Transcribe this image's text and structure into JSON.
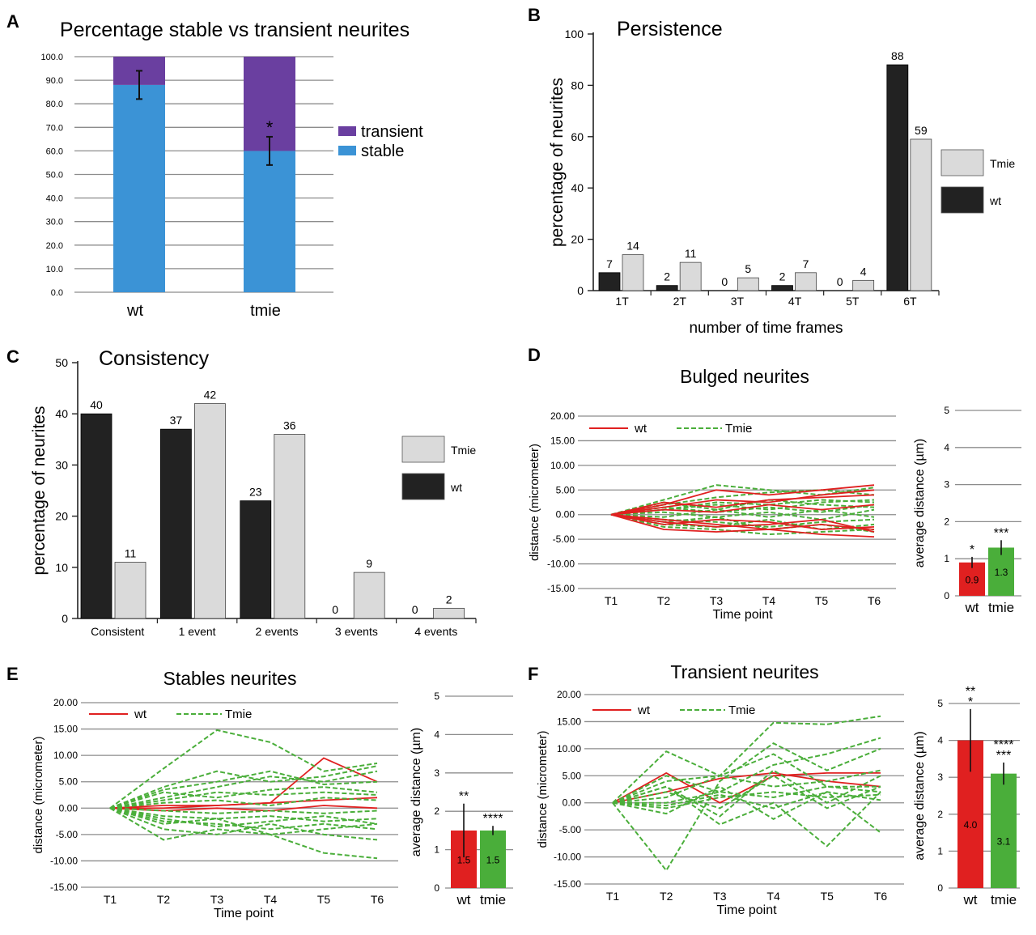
{
  "colors": {
    "stable": "#3b93d6",
    "transient": "#6a3fa0",
    "wt_bar": "#222222",
    "tmie_bar": "#dadada",
    "wt_red": "#e02020",
    "tmie_green": "#4aae3a",
    "grid": "#8c8c8c"
  },
  "panels": {
    "A": {
      "letter": "A",
      "title": "Percentage stable vs transient neurites"
    },
    "B": {
      "letter": "B",
      "title": "Persistence"
    },
    "C": {
      "letter": "C",
      "title": "Consistency"
    },
    "D": {
      "letter": "D",
      "title": "Bulged neurites"
    },
    "E": {
      "letter": "E",
      "title": "Stables neurites"
    },
    "F": {
      "letter": "F",
      "title": "Transient neurites"
    }
  },
  "chart_data": [
    {
      "id": "A",
      "type": "bar",
      "stacked": true,
      "title": "Percentage stable vs transient neurites",
      "categories": [
        "wt",
        "tmie"
      ],
      "series": [
        {
          "name": "stable",
          "values": [
            88,
            60
          ],
          "error": [
            6,
            6
          ]
        },
        {
          "name": "transient",
          "values": [
            12,
            40
          ]
        }
      ],
      "ylim": [
        0,
        100
      ],
      "yticks": [
        "0.0",
        "10.0",
        "20.0",
        "30.0",
        "40.0",
        "50.0",
        "60.0",
        "70.0",
        "80.0",
        "90.0",
        "100.0"
      ],
      "annotations": [
        {
          "category": "tmie",
          "text": "*"
        }
      ],
      "legend": [
        "transient",
        "stable"
      ],
      "legend_position": "right",
      "grid": true
    },
    {
      "id": "B",
      "type": "bar",
      "title": "Persistence",
      "xlabel": "number of time frames",
      "ylabel": "percentage of neurites",
      "categories": [
        "1T",
        "2T",
        "3T",
        "4T",
        "5T",
        "6T"
      ],
      "series": [
        {
          "name": "wt",
          "values": [
            7,
            2,
            0,
            2,
            0,
            88
          ]
        },
        {
          "name": "Tmie",
          "values": [
            14,
            11,
            5,
            7,
            4,
            59
          ]
        }
      ],
      "ylim": [
        0,
        100
      ],
      "yticks": [
        "0",
        "20",
        "40",
        "60",
        "80",
        "100"
      ],
      "legend": [
        "Tmie",
        "wt"
      ],
      "legend_position": "right",
      "grid": false
    },
    {
      "id": "C",
      "type": "bar",
      "title": "Consistency",
      "ylabel": "percentage of neurites",
      "categories": [
        "Consistent",
        "1 event",
        "2 events",
        "3 events",
        "4 events"
      ],
      "series": [
        {
          "name": "wt",
          "values": [
            40,
            37,
            23,
            0,
            0
          ]
        },
        {
          "name": "Tmie",
          "values": [
            11,
            42,
            36,
            9,
            2
          ]
        }
      ],
      "ylim": [
        0,
        50
      ],
      "yticks": [
        "0",
        "10",
        "20",
        "30",
        "40",
        "50"
      ],
      "legend": [
        "Tmie",
        "wt"
      ],
      "legend_position": "right",
      "grid": false
    },
    {
      "id": "D",
      "type": "line",
      "title": "Bulged neurites",
      "xlabel": "Time point",
      "ylabel": "distance (micrometer)",
      "x": [
        "T1",
        "T2",
        "T3",
        "T4",
        "T5",
        "T6"
      ],
      "ylim": [
        -15,
        20
      ],
      "yticks": [
        "-15.00",
        "-10.00",
        "-5.00",
        "0.00",
        "5.00",
        "10.00",
        "15.00",
        "20.00"
      ],
      "legend": [
        "wt",
        "Tmie"
      ],
      "series": [
        {
          "name": "wt",
          "lines": [
            [
              0,
              2,
              5,
              4,
              5,
              6
            ],
            [
              0,
              -3,
              -3.5,
              -3,
              -4,
              -4.5
            ],
            [
              0,
              1.5,
              3,
              2.5,
              4,
              5
            ],
            [
              0,
              -1,
              -2,
              -3,
              -2,
              -3
            ],
            [
              0,
              2.5,
              1.5,
              3,
              3.5,
              4
            ],
            [
              0,
              -2,
              -1,
              -1.5,
              -3,
              -2.5
            ],
            [
              0,
              1,
              0.5,
              2,
              1,
              2
            ],
            [
              0,
              -1.5,
              -2.5,
              -2,
              -1,
              -3.5
            ]
          ]
        },
        {
          "name": "Tmie",
          "lines": [
            [
              0,
              3,
              6,
              5,
              4,
              5.5
            ],
            [
              0,
              -2.5,
              -3,
              -4,
              -3.5,
              -3
            ],
            [
              0,
              2,
              3.5,
              4.5,
              5,
              4
            ],
            [
              0,
              -2,
              -2.5,
              -1,
              -3,
              -2
            ],
            [
              0,
              1,
              2,
              1,
              2.5,
              3
            ],
            [
              0,
              -1,
              -1.5,
              -2.5,
              -1.5,
              -1
            ],
            [
              0,
              1.5,
              0.5,
              1.5,
              0.5,
              2
            ],
            [
              0,
              -0.5,
              1,
              -0.5,
              1,
              -0.5
            ],
            [
              0,
              0.5,
              -0.5,
              0.5,
              -1,
              1
            ],
            [
              0,
              2.5,
              1,
              3,
              2,
              1.5
            ],
            [
              0,
              -1.5,
              -0.5,
              -3,
              -2,
              -3.5
            ],
            [
              0,
              1,
              2.5,
              2,
              3,
              2.5
            ]
          ]
        }
      ],
      "grid": true
    },
    {
      "id": "D-inset",
      "type": "bar",
      "ylabel": "average distance (µm)",
      "categories": [
        "wt",
        "tmie"
      ],
      "values": [
        0.9,
        1.3
      ],
      "error": [
        0.15,
        0.2
      ],
      "value_labels": [
        "0.9",
        "1.3"
      ],
      "significance": [
        "*",
        "***"
      ],
      "ylim": [
        0,
        5
      ],
      "yticks": [
        "0",
        "1",
        "2",
        "3",
        "4",
        "5"
      ],
      "grid": true
    },
    {
      "id": "E",
      "type": "line",
      "title": "Stables neurites",
      "xlabel": "Time point",
      "ylabel": "distance (micrometer)",
      "x": [
        "T1",
        "T2",
        "T3",
        "T4",
        "T5",
        "T6"
      ],
      "ylim": [
        -15,
        20
      ],
      "yticks": [
        "-15.00",
        "-10.00",
        "-5.00",
        "0.00",
        "5.00",
        "10.00",
        "15.00",
        "20.00"
      ],
      "legend": [
        "wt",
        "Tmie"
      ],
      "series": [
        {
          "name": "wt",
          "lines": [
            [
              0,
              0,
              0.5,
              1,
              9.5,
              5
            ],
            [
              0,
              0.5,
              0.5,
              1,
              1.5,
              2
            ],
            [
              0,
              -0.5,
              0,
              -0.5,
              0.5,
              0
            ]
          ]
        },
        {
          "name": "Tmie",
          "lines": [
            [
              0,
              7.5,
              14.8,
              12.5,
              7,
              8.5
            ],
            [
              0,
              -6,
              -4,
              -5,
              -8.5,
              -9.5
            ],
            [
              0,
              4,
              7,
              5,
              6,
              8
            ],
            [
              0,
              -4,
              -5,
              -3,
              -5,
              -6
            ],
            [
              0,
              2,
              4,
              6,
              5,
              7
            ],
            [
              0,
              -2.5,
              -3,
              -4,
              -3,
              -4
            ],
            [
              0,
              3,
              2,
              3.5,
              4,
              3
            ],
            [
              0,
              -1.5,
              -2,
              -1.5,
              -2.5,
              -2
            ],
            [
              0,
              1,
              1.5,
              0.5,
              2,
              1.5
            ],
            [
              0,
              -0.5,
              -1,
              -0.5,
              -1,
              -0.5
            ],
            [
              0,
              3.5,
              5,
              7,
              4.5,
              5
            ],
            [
              0,
              -3,
              -2,
              -5,
              -4,
              -3
            ],
            [
              0,
              1.5,
              3,
              2.5,
              3,
              2.5
            ],
            [
              0,
              -2,
              -3.5,
              -2.5,
              -1.5,
              -3
            ]
          ]
        }
      ],
      "grid": true
    },
    {
      "id": "E-inset",
      "type": "bar",
      "ylabel": "average distance (µm)",
      "categories": [
        "wt",
        "tmie"
      ],
      "values": [
        1.5,
        1.5
      ],
      "error": [
        0.7,
        0.12
      ],
      "value_labels": [
        "1.5",
        "1.5"
      ],
      "significance": [
        "**",
        "****"
      ],
      "ylim": [
        0,
        5
      ],
      "yticks": [
        "0",
        "1",
        "2",
        "3",
        "4",
        "5"
      ],
      "grid": true
    },
    {
      "id": "F",
      "type": "line",
      "title": "Transient neurites",
      "xlabel": "Time point",
      "ylabel": "distance (micrometer)",
      "x": [
        "T1",
        "T2",
        "T3",
        "T4",
        "T5",
        "T6"
      ],
      "ylim": [
        -15,
        20
      ],
      "yticks": [
        "-15.00",
        "-10.00",
        "-5.00",
        "0.00",
        "5.00",
        "10.00",
        "15.00",
        "20.00"
      ],
      "legend": [
        "wt",
        "Tmie"
      ],
      "series": [
        {
          "name": "wt",
          "lines": [
            [
              0,
              5.5,
              0,
              5,
              5.5,
              5.5
            ],
            [
              0,
              2,
              4.5,
              5.5,
              4,
              3
            ]
          ]
        },
        {
          "name": "Tmie",
          "lines": [
            [
              0,
              9.5,
              5,
              14.8,
              14.5,
              16
            ],
            [
              0,
              -12.5,
              4,
              11,
              6,
              10
            ],
            [
              0,
              5,
              2,
              7,
              9,
              12
            ],
            [
              0,
              3,
              -4,
              0,
              -8,
              2
            ],
            [
              0,
              -2,
              3,
              -3,
              2,
              -5.5
            ],
            [
              0,
              1,
              5,
              3,
              4,
              6
            ],
            [
              0,
              2,
              -1,
              5,
              -1,
              3
            ],
            [
              0,
              -1,
              1,
              2,
              1,
              1.5
            ],
            [
              0,
              4,
              5,
              9,
              3,
              3
            ],
            [
              0,
              0,
              2,
              1,
              3,
              2
            ],
            [
              0,
              3,
              -2.5,
              6,
              0,
              5
            ],
            [
              0,
              -0.5,
              1.5,
              -1,
              2,
              0.5
            ]
          ]
        }
      ],
      "grid": true
    },
    {
      "id": "F-inset",
      "type": "bar",
      "ylabel": "average distance (µm)",
      "categories": [
        "wt",
        "tmie"
      ],
      "values": [
        4.0,
        3.1
      ],
      "error": [
        0.85,
        0.3
      ],
      "value_labels": [
        "4.0",
        "3.1"
      ],
      "significance": [
        "**\n*",
        "****\n***"
      ],
      "ylim": [
        0,
        5
      ],
      "yticks": [
        "0",
        "1",
        "2",
        "3",
        "4",
        "5"
      ],
      "grid": true
    }
  ]
}
